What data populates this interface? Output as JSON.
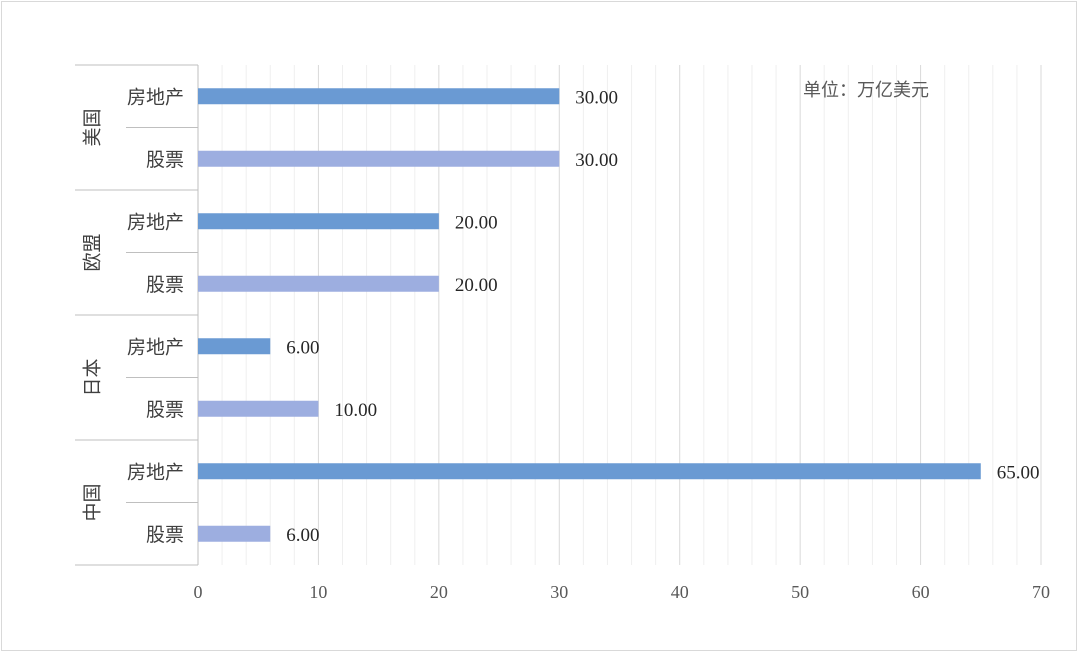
{
  "chart_data": {
    "type": "bar",
    "orientation": "horizontal",
    "unit_note": "单位：万亿美元",
    "groups": [
      {
        "name": "美国",
        "items": [
          {
            "label": "房地产",
            "value": 30.0
          },
          {
            "label": "股票",
            "value": 30.0
          }
        ]
      },
      {
        "name": "欧盟",
        "items": [
          {
            "label": "房地产",
            "value": 20.0
          },
          {
            "label": "股票",
            "value": 20.0
          }
        ]
      },
      {
        "name": "日本",
        "items": [
          {
            "label": "房地产",
            "value": 6.0
          },
          {
            "label": "股票",
            "value": 10.0
          }
        ]
      },
      {
        "name": "中国",
        "items": [
          {
            "label": "房地产",
            "value": 65.0
          },
          {
            "label": "股票",
            "value": 6.0
          }
        ]
      }
    ],
    "xlim": [
      0,
      70
    ],
    "xticks": [
      0,
      10,
      20,
      30,
      40,
      50,
      60,
      70
    ],
    "grid": true,
    "colors": {
      "房地产": "#6a9ad3",
      "股票": "#9daee0",
      "grid_major": "#d9d9d9",
      "grid_minor": "#efefef",
      "axis": "#bfbfbf"
    }
  }
}
